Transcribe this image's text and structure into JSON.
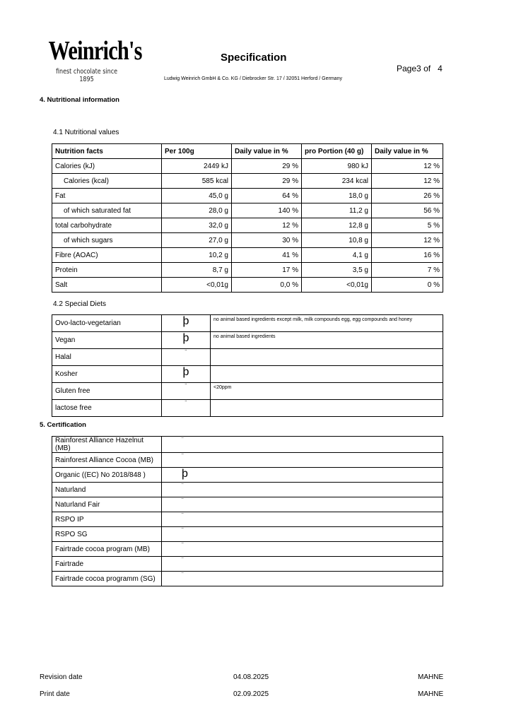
{
  "header": {
    "logo_text": "Weinrich's",
    "logo_tagline": "finest chocolate since 1895",
    "title": "Specification",
    "page_label": "Page",
    "page_number": "3",
    "page_of": "of",
    "page_total": "4",
    "company": "Ludwig Weinrich GmbH & Co. KG / Diebrocker Str. 17 / 32051 Herford / Germany"
  },
  "section4": {
    "title": "4. Nutritional information",
    "sub1": "4.1 Nutritional values",
    "sub2": "4.2 Special Diets"
  },
  "nutrition": {
    "headers": [
      "Nutrition facts",
      "Per 100g",
      "Daily value in %",
      "pro Portion (40 g)",
      "Daily value in %"
    ],
    "rows": [
      [
        "Calories (kJ)",
        "2449 kJ",
        "29 %",
        "980 kJ",
        "12 %"
      ],
      [
        "Calories (kcal)",
        "585 kcal",
        "29 %",
        "234 kcal",
        "12 %"
      ],
      [
        "Fat",
        "45,0 g",
        "64 %",
        "18,0 g",
        "26 %"
      ],
      [
        "of which saturated fat",
        "28,0 g",
        "140 %",
        "11,2 g",
        "56 %"
      ],
      [
        "total carbohydrate",
        "32,0 g",
        "12 %",
        "12,8 g",
        "5 %"
      ],
      [
        "of which sugars",
        "27,0 g",
        "30 %",
        "10,8 g",
        "12 %"
      ],
      [
        "Fibre (AOAC)",
        "10,2 g",
        "41 %",
        "4,1 g",
        "16 %"
      ],
      [
        "Protein",
        "8,7 g",
        "17 %",
        "3,5 g",
        "7 %"
      ],
      [
        "Salt",
        "<0,01g",
        "0,0 %",
        "<0,01g",
        "0 %"
      ]
    ]
  },
  "diets": [
    {
      "label": "Ovo-lacto-vegetarian",
      "mark": "þ",
      "note": "no animal based ingredients except milk, milk compounds egg, egg compounds and honey"
    },
    {
      "label": "Vegan",
      "mark": "þ",
      "note": "no animal based ingredients"
    },
    {
      "label": "Halal",
      "mark": "¨",
      "note": ""
    },
    {
      "label": "Kosher",
      "mark": "þ",
      "note": ""
    },
    {
      "label": "Gluten free",
      "mark": "¨",
      "note": "<20ppm"
    },
    {
      "label": "lactose free",
      "mark": "¨",
      "note": ""
    }
  ],
  "section5": {
    "title": "5. Certification"
  },
  "certs": [
    {
      "label": "Rainforest Alliance Hazelnut (MB)",
      "mark": "¨"
    },
    {
      "label": "Rainforest Alliance Cocoa (MB)",
      "mark": "¨"
    },
    {
      "label": "Organic ((EC) No 2018/848 )",
      "mark": "þ"
    },
    {
      "label": "Naturland",
      "mark": "¨"
    },
    {
      "label": "Naturland Fair",
      "mark": "¨"
    },
    {
      "label": "RSPO IP",
      "mark": "¨"
    },
    {
      "label": "RSPO SG",
      "mark": "¨"
    },
    {
      "label": "Fairtrade cocoa program (MB)",
      "mark": "¨"
    },
    {
      "label": "Fairtrade",
      "mark": "¨"
    },
    {
      "label": "Fairtrade cocoa programm (SG)",
      "mark": "¨"
    }
  ],
  "footer": {
    "revision_label": "Revision date",
    "revision_date": "04.08.2025",
    "revision_user": "MAHNE",
    "print_label": "Print date",
    "print_date": "02.09.2025",
    "print_user": "MAHNE"
  }
}
